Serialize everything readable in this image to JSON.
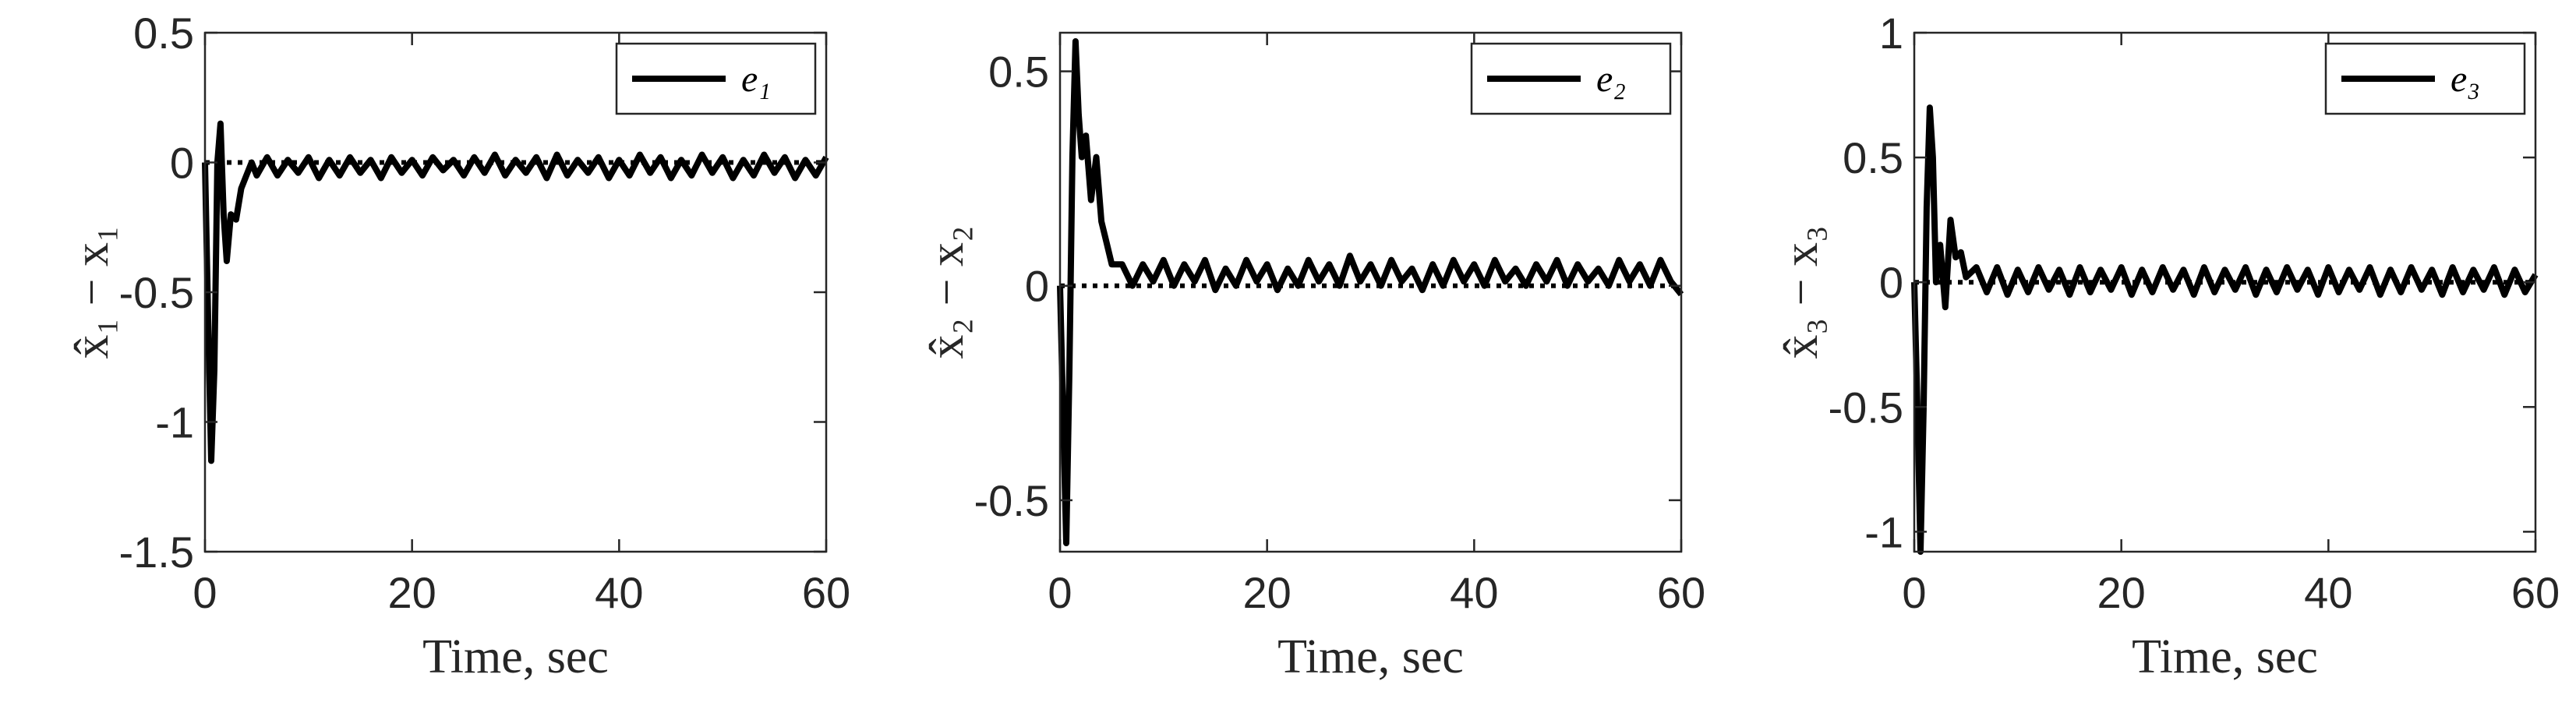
{
  "chart_data": [
    {
      "type": "line",
      "xlabel": "Time, sec",
      "ylabel": "x̂₁ − x₁",
      "xlim": [
        0,
        60
      ],
      "xticks": [
        0,
        20,
        40,
        60
      ],
      "ylim": [
        -1.5,
        0.5
      ],
      "yticks": [
        -1.5,
        -1,
        -0.5,
        0,
        0.5
      ],
      "legend": "upper right",
      "x": [
        0,
        0.3,
        0.6,
        0.9,
        1.2,
        1.5,
        1.8,
        2.1,
        2.5,
        3,
        3.5,
        4,
        4.5,
        5,
        6,
        7,
        8,
        9,
        10,
        11,
        12,
        13,
        14,
        15,
        16,
        17,
        18,
        19,
        20,
        21,
        22,
        23,
        24,
        25,
        26,
        27,
        28,
        29,
        30,
        31,
        32,
        33,
        34,
        35,
        36,
        37,
        38,
        39,
        40,
        41,
        42,
        43,
        44,
        45,
        46,
        47,
        48,
        49,
        50,
        51,
        52,
        53,
        54,
        55,
        56,
        57,
        58,
        59,
        60
      ],
      "series": [
        {
          "name": "e₁",
          "color": "#000000",
          "values": [
            0,
            -0.6,
            -1.15,
            -0.8,
            0,
            0.15,
            -0.2,
            -0.38,
            -0.2,
            -0.22,
            -0.1,
            -0.05,
            0,
            -0.05,
            0.02,
            -0.05,
            0.01,
            -0.04,
            0.02,
            -0.06,
            0.01,
            -0.05,
            0.02,
            -0.04,
            0.01,
            -0.06,
            0.02,
            -0.04,
            0.01,
            -0.05,
            0.02,
            -0.03,
            0.01,
            -0.05,
            0.02,
            -0.04,
            0.03,
            -0.05,
            0.01,
            -0.04,
            0.02,
            -0.06,
            0.03,
            -0.05,
            0.01,
            -0.04,
            0.02,
            -0.06,
            0.01,
            -0.05,
            0.03,
            -0.04,
            0.02,
            -0.06,
            0.01,
            -0.05,
            0.03,
            -0.04,
            0.02,
            -0.06,
            0.01,
            -0.05,
            0.03,
            -0.04,
            0.02,
            -0.06,
            0.01,
            -0.05,
            0.02
          ]
        },
        {
          "color": "#000000",
          "dash": "dotted",
          "x": [
            0,
            60
          ],
          "values": [
            0,
            0
          ]
        }
      ]
    },
    {
      "type": "line",
      "xlabel": "Time, sec",
      "ylabel": "x̂₂ − x₂",
      "xlim": [
        0,
        60
      ],
      "xticks": [
        0,
        20,
        40,
        60
      ],
      "ylim": [
        -0.62,
        0.59
      ],
      "yticks": [
        -0.5,
        0,
        0.5
      ],
      "legend": "upper right",
      "x": [
        0,
        0.3,
        0.6,
        0.9,
        1.2,
        1.5,
        1.8,
        2.1,
        2.5,
        3,
        3.5,
        4,
        4.5,
        5,
        6,
        7,
        8,
        9,
        10,
        11,
        12,
        13,
        14,
        15,
        16,
        17,
        18,
        19,
        20,
        21,
        22,
        23,
        24,
        25,
        26,
        27,
        28,
        29,
        30,
        31,
        32,
        33,
        34,
        35,
        36,
        37,
        38,
        39,
        40,
        41,
        42,
        43,
        44,
        45,
        46,
        47,
        48,
        49,
        50,
        51,
        52,
        53,
        54,
        55,
        56,
        57,
        58,
        59,
        60
      ],
      "series": [
        {
          "name": "e₂",
          "color": "#000000",
          "values": [
            0,
            -0.3,
            -0.6,
            -0.2,
            0.3,
            0.57,
            0.4,
            0.3,
            0.35,
            0.2,
            0.3,
            0.15,
            0.1,
            0.05,
            0.05,
            0,
            0.05,
            0.01,
            0.06,
            0,
            0.05,
            0.01,
            0.06,
            -0.01,
            0.04,
            0,
            0.06,
            0.01,
            0.05,
            -0.01,
            0.04,
            0,
            0.06,
            0.01,
            0.05,
            0,
            0.07,
            0.01,
            0.05,
            0,
            0.06,
            0.01,
            0.04,
            -0.01,
            0.05,
            0,
            0.06,
            0.01,
            0.05,
            0,
            0.06,
            0.01,
            0.04,
            0,
            0.05,
            0.01,
            0.06,
            0,
            0.05,
            0.01,
            0.04,
            0,
            0.06,
            0.01,
            0.05,
            0,
            0.06,
            0.01,
            -0.02
          ]
        },
        {
          "color": "#000000",
          "dash": "dotted",
          "x": [
            0,
            60
          ],
          "values": [
            0,
            0
          ]
        }
      ]
    },
    {
      "type": "line",
      "xlabel": "Time, sec",
      "ylabel": "x̂₃ − x₃",
      "xlim": [
        0,
        60
      ],
      "xticks": [
        0,
        20,
        40,
        60
      ],
      "ylim": [
        -1.08,
        1.0
      ],
      "yticks": [
        -1,
        -0.5,
        0,
        0.5,
        1
      ],
      "legend": "upper right",
      "x": [
        0,
        0.3,
        0.6,
        0.9,
        1.2,
        1.5,
        1.8,
        2.1,
        2.5,
        3,
        3.5,
        4,
        4.5,
        5,
        6,
        7,
        8,
        9,
        10,
        11,
        12,
        13,
        14,
        15,
        16,
        17,
        18,
        19,
        20,
        21,
        22,
        23,
        24,
        25,
        26,
        27,
        28,
        29,
        30,
        31,
        32,
        33,
        34,
        35,
        36,
        37,
        38,
        39,
        40,
        41,
        42,
        43,
        44,
        45,
        46,
        47,
        48,
        49,
        50,
        51,
        52,
        53,
        54,
        55,
        56,
        57,
        58,
        59,
        60
      ],
      "series": [
        {
          "name": "e₃",
          "color": "#000000",
          "values": [
            0,
            -0.5,
            -1.08,
            -0.5,
            0.3,
            0.7,
            0.5,
            0,
            0.15,
            -0.1,
            0.25,
            0.1,
            0.12,
            0.02,
            0.06,
            -0.04,
            0.06,
            -0.05,
            0.05,
            -0.04,
            0.06,
            -0.03,
            0.05,
            -0.05,
            0.06,
            -0.04,
            0.05,
            -0.03,
            0.06,
            -0.05,
            0.05,
            -0.04,
            0.06,
            -0.03,
            0.05,
            -0.05,
            0.06,
            -0.04,
            0.05,
            -0.03,
            0.06,
            -0.05,
            0.05,
            -0.04,
            0.06,
            -0.03,
            0.05,
            -0.05,
            0.06,
            -0.04,
            0.05,
            -0.03,
            0.06,
            -0.05,
            0.05,
            -0.04,
            0.06,
            -0.03,
            0.05,
            -0.05,
            0.06,
            -0.04,
            0.05,
            -0.03,
            0.06,
            -0.05,
            0.05,
            -0.04,
            0.03
          ]
        },
        {
          "color": "#000000",
          "dash": "dotted",
          "x": [
            0,
            60
          ],
          "values": [
            0,
            0
          ]
        }
      ]
    }
  ]
}
